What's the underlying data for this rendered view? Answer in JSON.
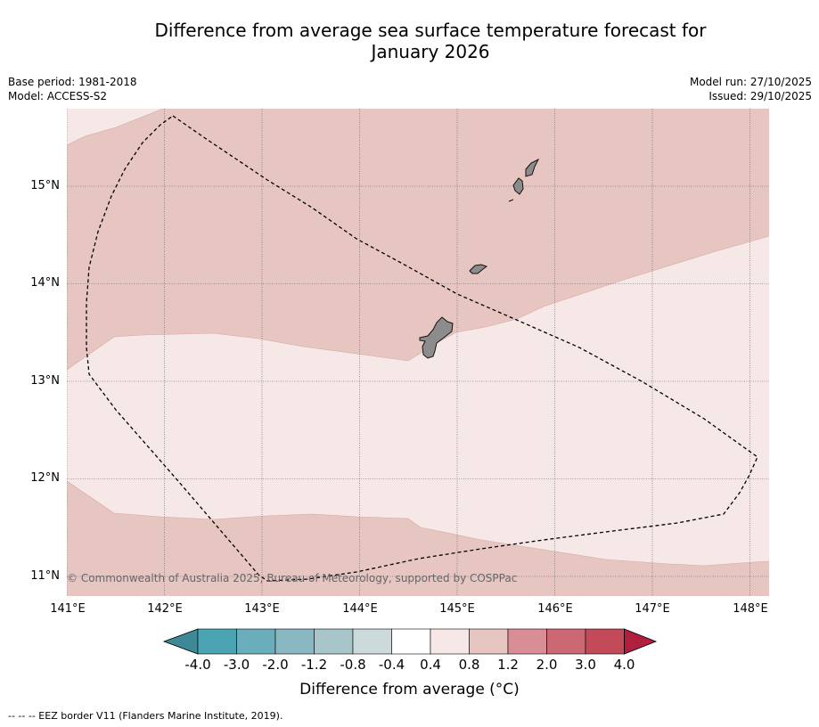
{
  "title_line1": "Difference from average sea surface temperature forecast for",
  "title_line2": "January 2026",
  "meta_left": {
    "base_period": "Base period: 1981-2018",
    "model": "Model: ACCESS-S2"
  },
  "meta_right": {
    "model_run": "Model run: 27/10/2025",
    "issued": "Issued: 29/10/2025"
  },
  "map": {
    "lon_labels": [
      "141°E",
      "142°E",
      "143°E",
      "144°E",
      "145°E",
      "146°E",
      "147°E",
      "148°E"
    ],
    "lat_labels": [
      "15°N",
      "14°N",
      "13°N",
      "12°N",
      "11°N"
    ],
    "copyright": "© Commonwealth of Australia 2025, Bureau of Meteorology, supported by COSPPac",
    "colors": {
      "band_0_4_to_0_8": "#f5e8e7",
      "band_0_8_to_1_2": "#e7c6c2",
      "land": "#8c8c8c"
    }
  },
  "colorbar": {
    "ticks": [
      "-4.0",
      "-3.0",
      "-2.0",
      "-1.2",
      "-0.8",
      "-0.4",
      "0.4",
      "0.8",
      "1.2",
      "2.0",
      "3.0",
      "4.0"
    ],
    "colors": [
      "#4aa4b4",
      "#6baebb",
      "#8ab8c2",
      "#a8c5ca",
      "#ccdadb",
      "#ffffff",
      "#f5e8e7",
      "#e7c6c2",
      "#d98d95",
      "#cc6873",
      "#c24a59"
    ],
    "under_color": "#3f8896",
    "over_color": "#b01f3f",
    "label": "Difference from average (°C)"
  },
  "footer": "--  --  -- EEZ border V11 (Flanders Marine Institute, 2019)."
}
